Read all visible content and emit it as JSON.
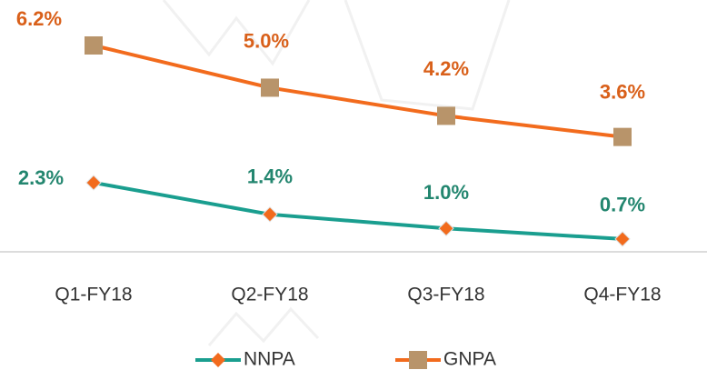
{
  "chart_data": {
    "type": "line",
    "categories": [
      "Q1-FY18",
      "Q2-FY18",
      "Q3-FY18",
      "Q4-FY18"
    ],
    "series": [
      {
        "name": "NNPA",
        "color": "#1a9e8f",
        "marker_color": "#f26b1d",
        "label_color": "#23866f",
        "values": [
          2.3,
          1.4,
          1.0,
          0.7
        ],
        "value_labels": [
          "2.3%",
          "1.4%",
          "1.0%",
          "0.7%"
        ]
      },
      {
        "name": "GNPA",
        "color": "#f26b1d",
        "marker_color": "#b8946a",
        "label_color": "#d9601a",
        "values": [
          6.2,
          5.0,
          4.2,
          3.6
        ],
        "value_labels": [
          "6.2%",
          "5.0%",
          "4.2%",
          "3.6%"
        ]
      }
    ]
  }
}
